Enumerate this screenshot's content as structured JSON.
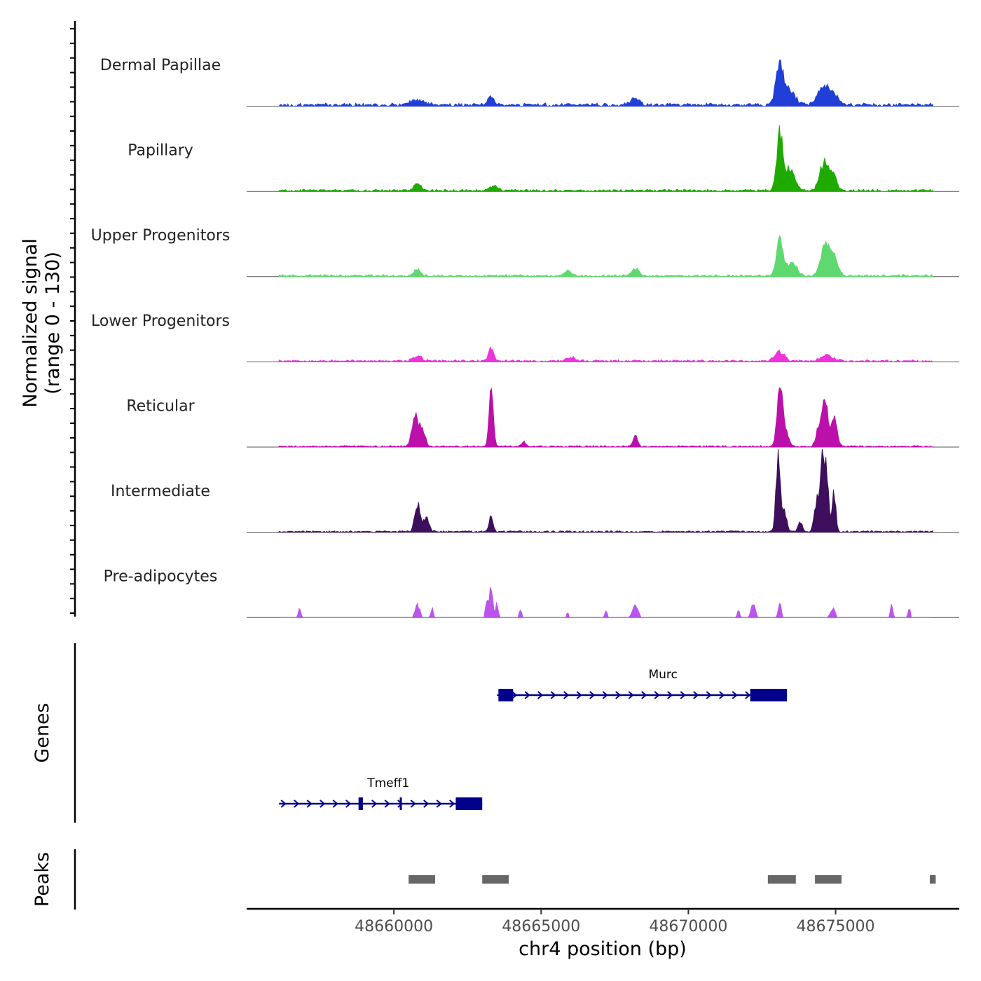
{
  "chart_data": {
    "type": "area",
    "title": "",
    "xlabel": "chr4 position (bp)",
    "ylabel": "Normalized signal\n(range 0 - 130)",
    "xlim": [
      48655000,
      48679200
    ],
    "ylim": [
      0,
      130
    ],
    "x_ticks": [
      48660000,
      48665000,
      48670000,
      48675000
    ],
    "x_tick_labels": [
      "48660000",
      "48665000",
      "48670000",
      "48675000"
    ],
    "grid": false,
    "legend": "none",
    "data_start": 48656100,
    "data_end": 48678300,
    "tracks": [
      {
        "name": "Dermal Papillae",
        "color": "#1f3fd6",
        "baseline": 12,
        "peaks": [
          [
            48673100,
            80,
            130
          ],
          [
            48673450,
            30,
            180
          ],
          [
            48674550,
            35,
            170
          ],
          [
            48674900,
            25,
            160
          ],
          [
            48663300,
            18,
            110
          ],
          [
            48668200,
            15,
            140
          ],
          [
            48660800,
            10,
            250
          ]
        ]
      },
      {
        "name": "Papillary",
        "color": "#1faa00",
        "baseline": 8,
        "peaks": [
          [
            48673100,
            120,
            100
          ],
          [
            48673450,
            45,
            160
          ],
          [
            48674600,
            55,
            140
          ],
          [
            48674900,
            35,
            130
          ],
          [
            48660800,
            15,
            120
          ],
          [
            48663400,
            10,
            120
          ]
        ]
      },
      {
        "name": "Upper Progenitors",
        "color": "#5fd96f",
        "baseline": 8,
        "peaks": [
          [
            48673100,
            75,
            110
          ],
          [
            48673500,
            30,
            160
          ],
          [
            48674650,
            60,
            150
          ],
          [
            48674950,
            35,
            140
          ],
          [
            48660800,
            15,
            110
          ],
          [
            48665900,
            10,
            120
          ],
          [
            48668200,
            15,
            120
          ]
        ]
      },
      {
        "name": "Lower Progenitors",
        "color": "#ee33dd",
        "baseline": 8,
        "peaks": [
          [
            48663300,
            25,
            90
          ],
          [
            48673100,
            18,
            160
          ],
          [
            48674700,
            12,
            200
          ],
          [
            48660800,
            10,
            150
          ],
          [
            48666000,
            8,
            150
          ]
        ]
      },
      {
        "name": "Reticular",
        "color": "#bb11aa",
        "baseline": 6,
        "peaks": [
          [
            48663300,
            130,
            70
          ],
          [
            48660700,
            65,
            90
          ],
          [
            48660950,
            40,
            100
          ],
          [
            48673100,
            100,
            90
          ],
          [
            48673250,
            40,
            120
          ],
          [
            48674650,
            90,
            90
          ],
          [
            48674450,
            40,
            100
          ],
          [
            48674950,
            55,
            100
          ],
          [
            48668200,
            25,
            70
          ],
          [
            48664400,
            10,
            70
          ]
        ]
      },
      {
        "name": "Intermediate",
        "color": "#3d0f5c",
        "baseline": 6,
        "peaks": [
          [
            48673050,
            165,
            70
          ],
          [
            48673250,
            40,
            90
          ],
          [
            48674550,
            150,
            75
          ],
          [
            48674700,
            110,
            70
          ],
          [
            48674350,
            60,
            80
          ],
          [
            48674950,
            80,
            60
          ],
          [
            48673800,
            20,
            70
          ],
          [
            48660800,
            55,
            90
          ],
          [
            48661100,
            30,
            90
          ],
          [
            48663300,
            30,
            70
          ]
        ]
      },
      {
        "name": "Pre-adipocytes",
        "color": "#bb55ee",
        "baseline": 0,
        "peaks": [
          [
            48663300,
            60,
            60
          ],
          [
            48663150,
            35,
            40
          ],
          [
            48663500,
            30,
            40
          ],
          [
            48660800,
            25,
            80
          ],
          [
            48668200,
            25,
            90
          ],
          [
            48672200,
            28,
            70
          ],
          [
            48673100,
            30,
            50
          ],
          [
            48674900,
            18,
            80
          ],
          [
            48676900,
            25,
            40
          ],
          [
            48677500,
            18,
            40
          ],
          [
            48656800,
            20,
            40
          ],
          [
            48661300,
            20,
            40
          ],
          [
            48664300,
            18,
            40
          ],
          [
            48665900,
            10,
            40
          ],
          [
            48667200,
            15,
            40
          ],
          [
            48671700,
            15,
            40
          ]
        ]
      }
    ],
    "genes": [
      {
        "name": "Murc",
        "strand": "+",
        "start": 48663500,
        "end": 48673350,
        "exons": [
          [
            48663550,
            48664050
          ],
          [
            48672100,
            48673350
          ]
        ]
      },
      {
        "name": "Tmeff1",
        "strand": "+",
        "start": 48656100,
        "end": 48663000,
        "exons": [
          [
            48658800,
            48658950
          ],
          [
            48660200,
            48660260
          ],
          [
            48662100,
            48663000
          ]
        ]
      }
    ],
    "peaks": [
      [
        48660500,
        48661400
      ],
      [
        48663000,
        48663900
      ],
      [
        48672700,
        48673650
      ],
      [
        48674300,
        48675200
      ],
      [
        48678200,
        48678400
      ]
    ],
    "panel_labels": {
      "genes": "Genes",
      "peaks": "Peaks"
    }
  }
}
